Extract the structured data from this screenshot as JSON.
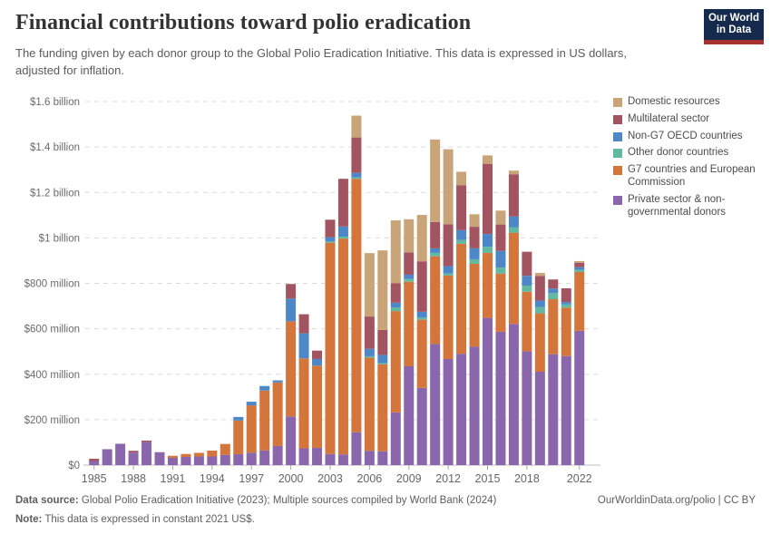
{
  "header": {
    "title": "Financial contributions toward polio eradication",
    "subtitle": "The funding given by each donor group to the Global Polio Eradication Initiative. This data is expressed in US dollars, adjusted for inflation.",
    "logo_line1": "Our World",
    "logo_line2": "in Data"
  },
  "legend": {
    "items": [
      {
        "label": "Domestic resources",
        "color": "#c8a478"
      },
      {
        "label": "Multilateral sector",
        "color": "#a25560"
      },
      {
        "label": "Non-G7 OECD countries",
        "color": "#4e87c7"
      },
      {
        "label": "Other donor countries",
        "color": "#62b9a0"
      },
      {
        "label": "G7 countries and European Commission",
        "color": "#d4753c"
      },
      {
        "label": "Private sector & non-governmental donors",
        "color": "#8a67ac"
      }
    ]
  },
  "chart_data": {
    "type": "bar",
    "stacked": true,
    "title": "Financial contributions toward polio eradication",
    "unit": "US$ millions (constant 2021 US$)",
    "ylim": [
      0,
      1600
    ],
    "grid": true,
    "legend_position": "right",
    "years": [
      1985,
      1986,
      1987,
      1988,
      1989,
      1990,
      1991,
      1992,
      1993,
      1994,
      1995,
      1996,
      1997,
      1998,
      1999,
      2000,
      2001,
      2002,
      2003,
      2004,
      2005,
      2006,
      2007,
      2008,
      2009,
      2010,
      2011,
      2012,
      2013,
      2014,
      2015,
      2016,
      2017,
      2018,
      2019,
      2020,
      2021,
      2022
    ],
    "series": [
      {
        "name": "Private sector & non-governmental donors",
        "color": "#8a67ac",
        "values": [
          18,
          70,
          94,
          55,
          101,
          57,
          32,
          36,
          38,
          38,
          45,
          48,
          55,
          65,
          84,
          214,
          74,
          76,
          49,
          47,
          145,
          63,
          61,
          232,
          435,
          340,
          533,
          467,
          490,
          521,
          648,
          587,
          621,
          501,
          411,
          488,
          480,
          591
        ]
      },
      {
        "name": "G7 countries and European Commission",
        "color": "#d4753c",
        "values": [
          0,
          0,
          0,
          0,
          0,
          0,
          9,
          13,
          16,
          26,
          48,
          148,
          208,
          263,
          280,
          419,
          396,
          362,
          930,
          950,
          1115,
          410,
          383,
          446,
          372,
          300,
          386,
          367,
          484,
          365,
          286,
          256,
          402,
          262,
          257,
          242,
          213,
          259
        ]
      },
      {
        "name": "Other donor countries",
        "color": "#62b9a0",
        "values": [
          0,
          0,
          0,
          0,
          0,
          0,
          0,
          0,
          0,
          0,
          0,
          0,
          0,
          0,
          0,
          0,
          0,
          0,
          5,
          8,
          6,
          6,
          5,
          16,
          12,
          9,
          15,
          9,
          17,
          20,
          27,
          27,
          23,
          27,
          27,
          27,
          15,
          10
        ]
      },
      {
        "name": "Non-G7 OECD countries",
        "color": "#4e87c7",
        "values": [
          0,
          0,
          0,
          0,
          0,
          0,
          0,
          0,
          0,
          0,
          0,
          16,
          16,
          20,
          9,
          100,
          110,
          29,
          19,
          45,
          20,
          33,
          36,
          21,
          19,
          26,
          20,
          33,
          43,
          48,
          56,
          73,
          48,
          43,
          29,
          20,
          10,
          11
        ]
      },
      {
        "name": "Multilateral sector",
        "color": "#a25560",
        "values": [
          10,
          0,
          0,
          8,
          7,
          0,
          0,
          0,
          0,
          0,
          0,
          0,
          0,
          0,
          0,
          64,
          84,
          37,
          77,
          210,
          156,
          142,
          110,
          85,
          98,
          222,
          116,
          184,
          197,
          95,
          309,
          116,
          186,
          106,
          109,
          40,
          60,
          19
        ]
      },
      {
        "name": "Domestic resources",
        "color": "#c8a478",
        "values": [
          0,
          0,
          0,
          0,
          0,
          0,
          0,
          0,
          0,
          0,
          0,
          0,
          0,
          0,
          0,
          0,
          0,
          0,
          0,
          0,
          96,
          279,
          350,
          277,
          146,
          204,
          363,
          330,
          60,
          55,
          37,
          61,
          16,
          0,
          13,
          0,
          0,
          8
        ]
      }
    ],
    "y_axis": {
      "ticks": [
        {
          "value": 0,
          "label": "$0"
        },
        {
          "value": 200,
          "label": "$200 million"
        },
        {
          "value": 400,
          "label": "$400 million"
        },
        {
          "value": 600,
          "label": "$600 million"
        },
        {
          "value": 800,
          "label": "$800 million"
        },
        {
          "value": 1000,
          "label": "$1 billion"
        },
        {
          "value": 1200,
          "label": "$1.2 billion"
        },
        {
          "value": 1400,
          "label": "$1.4 billion"
        },
        {
          "value": 1600,
          "label": "$1.6 billion"
        }
      ]
    },
    "x_axis": {
      "ticks": [
        1985,
        1988,
        1991,
        1994,
        1997,
        2000,
        2003,
        2006,
        2009,
        2012,
        2015,
        2018,
        2022
      ]
    }
  },
  "footer": {
    "source_label": "Data source:",
    "source_text": "Global Polio Eradication Initiative (2023); Multiple sources compiled by World Bank (2024)",
    "link_text": "OurWorldinData.org/polio | CC BY",
    "note_label": "Note:",
    "note_text": "This data is expressed in constant 2021 US$."
  }
}
